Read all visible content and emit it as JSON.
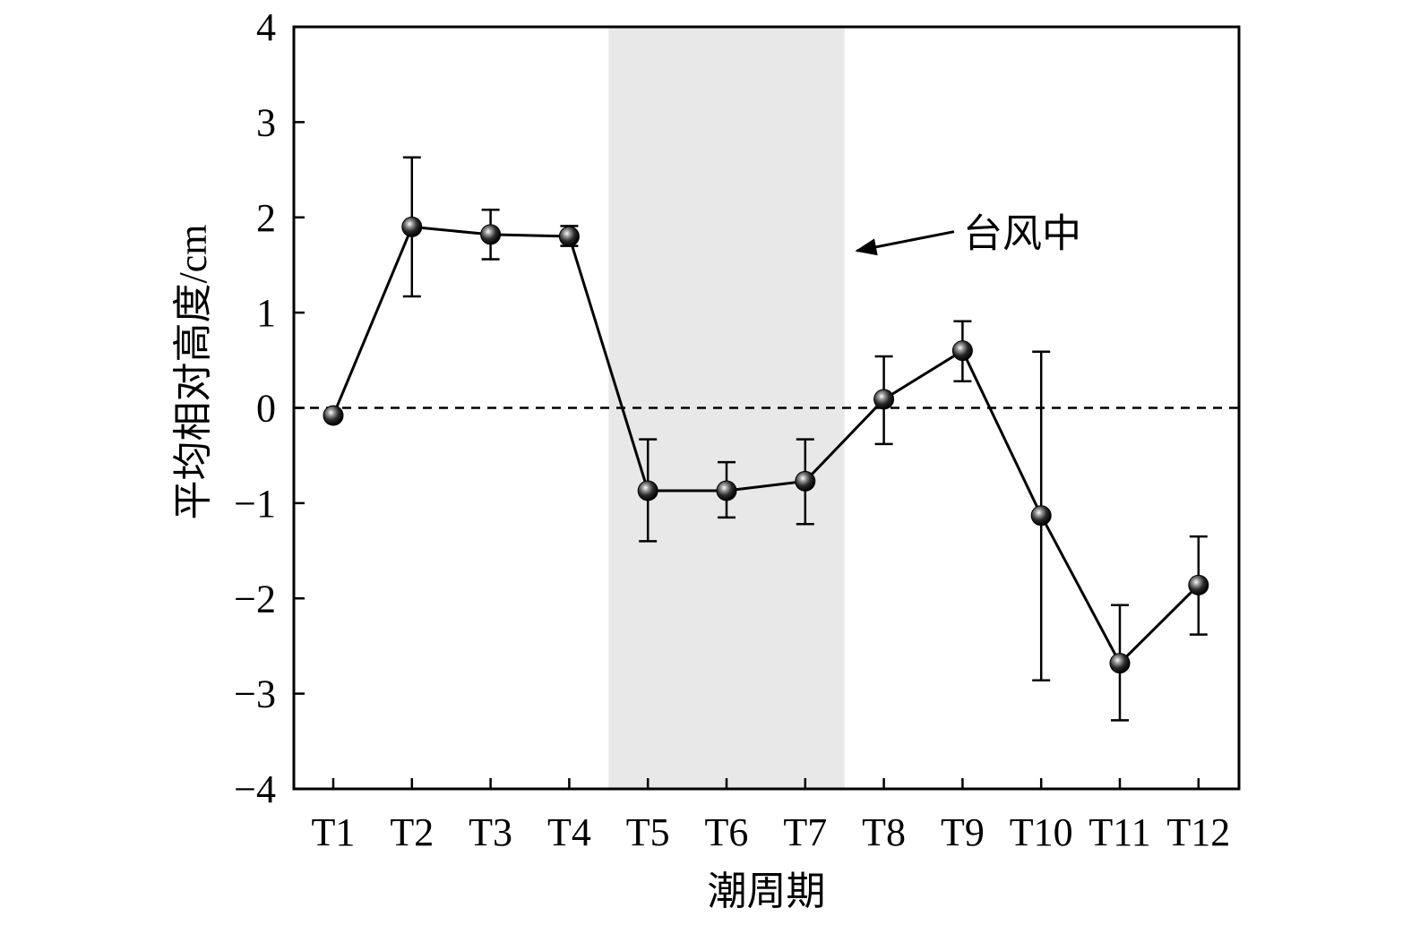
{
  "chart_data": {
    "type": "line",
    "title": "",
    "xlabel": "潮周期",
    "ylabel": "平均相对高度/cm",
    "categories": [
      "T1",
      "T2",
      "T3",
      "T4",
      "T5",
      "T6",
      "T7",
      "T8",
      "T9",
      "T10",
      "T11",
      "T12"
    ],
    "series": [
      {
        "values": [
          -0.08,
          1.9,
          1.82,
          1.8,
          -0.87,
          -0.87,
          -0.77,
          0.09,
          0.6,
          -1.13,
          -2.68,
          -1.86
        ],
        "error_low": [
          -0.1,
          1.17,
          1.56,
          1.7,
          -1.4,
          -1.15,
          -1.22,
          -0.38,
          0.28,
          -2.86,
          -3.28,
          -2.38
        ],
        "error_high": [
          -0.06,
          2.63,
          2.08,
          1.91,
          -0.33,
          -0.57,
          -0.33,
          0.54,
          0.91,
          0.59,
          -2.07,
          -1.35
        ],
        "color": "#000000"
      }
    ],
    "ylim": [
      -4,
      4
    ],
    "yticks": [
      -4,
      -3,
      -2,
      -1,
      0,
      1,
      2,
      3,
      4
    ],
    "ytick_labels": [
      "−4",
      "−3",
      "−2",
      "−1",
      "0",
      "1",
      "2",
      "3",
      "4"
    ],
    "reference_line": {
      "y": 0,
      "style": "dashed"
    },
    "shaded_region": {
      "from_category": 4.5,
      "to_category": 7.5,
      "color": "#e8e8e8"
    },
    "annotations": [
      {
        "text": "台风中",
        "arrow_target": "shaded_region"
      }
    ],
    "grid": false,
    "legend": false
  }
}
